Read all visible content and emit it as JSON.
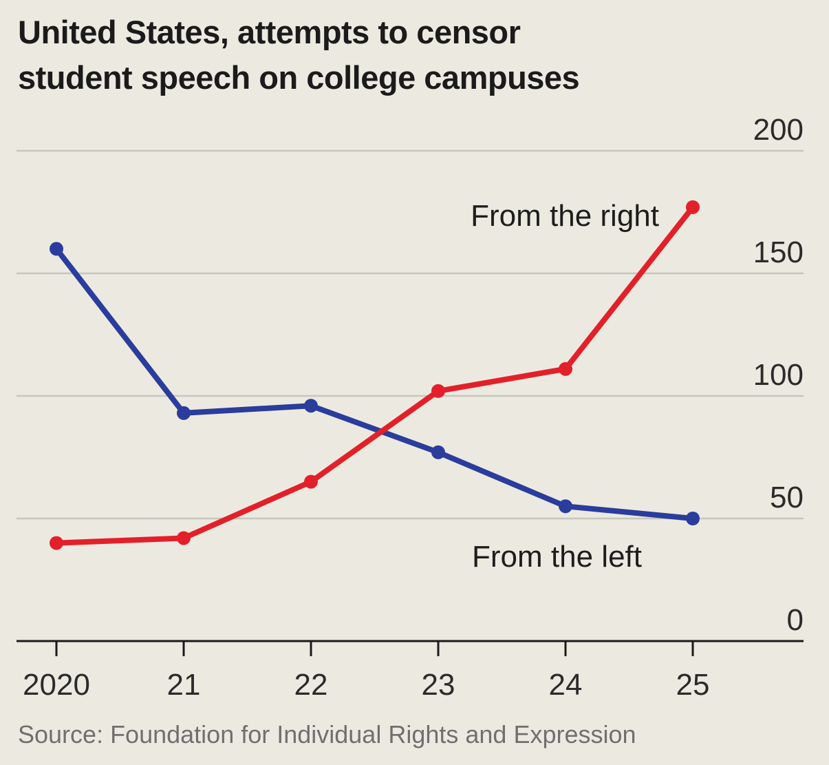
{
  "chart_data": {
    "type": "line",
    "title": "United States, attempts to censor student speech on college campuses",
    "title_lines": [
      "United States, attempts to censor",
      "student speech on college campuses"
    ],
    "categories": [
      "2020",
      "21",
      "22",
      "23",
      "24",
      "25"
    ],
    "ylim": [
      0,
      200
    ],
    "yticks": [
      0,
      50,
      100,
      150,
      200
    ],
    "xlabel": "",
    "ylabel": "",
    "grid": true,
    "y_axis_side": "right",
    "series": [
      {
        "name": "From the left",
        "color": "#2a3c9c",
        "values": [
          160,
          93,
          96,
          77,
          55,
          50
        ]
      },
      {
        "name": "From the right",
        "color": "#e3202a",
        "values": [
          40,
          42,
          65,
          102,
          111,
          177
        ]
      }
    ],
    "source": "Source: Foundation for Individual Rights and Expression"
  },
  "colors": {
    "background": "#eceae0",
    "gridline": "#c6c6be",
    "axis": "#1a1a1a"
  }
}
